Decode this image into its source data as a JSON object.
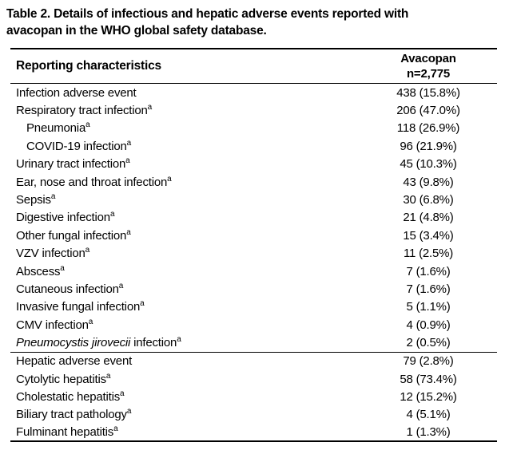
{
  "title": {
    "line1": "Table 2. Details of infectious and hepatic adverse events reported with",
    "line2": "avacopan in the WHO global safety database."
  },
  "table": {
    "header": {
      "characteristics": "Reporting characteristics",
      "group_line1": "Avacopan",
      "group_line2": "n=2,775"
    },
    "rows": [
      {
        "label": "Infection adverse event",
        "sup": "",
        "value": "438 (15.8%)"
      },
      {
        "label": "Respiratory tract infection",
        "sup": "a",
        "value": "206 (47.0%)"
      },
      {
        "label": "Pneumonia",
        "sup": "a",
        "value": "118 (26.9%)"
      },
      {
        "label": "COVID-19 infection",
        "sup": "a",
        "value": "96 (21.9%)"
      },
      {
        "label": "Urinary tract infection",
        "sup": "a",
        "value": "45 (10.3%)"
      },
      {
        "label": "Ear, nose and throat infection",
        "sup": "a",
        "value": "43 (9.8%)"
      },
      {
        "label": "Sepsis",
        "sup": "a",
        "value": "30 (6.8%)"
      },
      {
        "label": "Digestive infection",
        "sup": "a",
        "value": "21 (4.8%)"
      },
      {
        "label": "Other fungal infection",
        "sup": "a",
        "value": "15 (3.4%)"
      },
      {
        "label": "VZV infection",
        "sup": "a",
        "value": "11 (2.5%)"
      },
      {
        "label": "Abscess",
        "sup": "a",
        "value": "7 (1.6%)"
      },
      {
        "label": "Cutaneous infection",
        "sup": "a",
        "value": "7 (1.6%)"
      },
      {
        "label": "Invasive fungal infection",
        "sup": "a",
        "value": "5 (1.1%)"
      },
      {
        "label": "CMV infection",
        "sup": "a",
        "value": "4 (0.9%)"
      },
      {
        "label_italic": "Pneumocystis jirovecii",
        "label": " infection",
        "sup": "a",
        "value": "2 (0.5%)"
      },
      {
        "label": "Hepatic adverse event",
        "sup": "",
        "value": "79 (2.8%)"
      },
      {
        "label": "Cytolytic hepatitis",
        "sup": "a",
        "value": "58 (73.4%)"
      },
      {
        "label": "Cholestatic hepatitis",
        "sup": "a",
        "value": "12 (15.2%)"
      },
      {
        "label": "Biliary tract pathology",
        "sup": "a",
        "value": "4 (5.1%)"
      },
      {
        "label": "Fulminant hepatitis",
        "sup": "a",
        "value": "1 (1.3%)"
      }
    ]
  }
}
